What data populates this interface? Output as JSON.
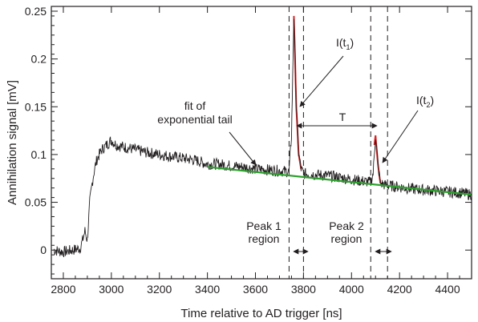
{
  "chart_data": {
    "type": "line",
    "xlabel": "Time relative to AD trigger [ns]",
    "ylabel": "Annihilation signal [mV]",
    "xlim": [
      2750,
      4500
    ],
    "ylim": [
      -0.03,
      0.255
    ],
    "xticks": [
      2800,
      3000,
      3200,
      3400,
      3600,
      3800,
      4000,
      4200,
      4400
    ],
    "yticks": [
      0,
      0.05,
      0.1,
      0.15,
      0.2,
      0.25
    ],
    "ytick_labels": [
      "0",
      "0.05",
      "0.1",
      "0.15",
      "0.2",
      "0.25"
    ],
    "grid": false,
    "series": [
      {
        "color": "#231f20",
        "x": [
          2760,
          2800,
          2840,
          2870,
          2880,
          2890,
          2900,
          2910,
          2920,
          2930,
          2940,
          2960,
          2980,
          3000,
          3020,
          3050,
          3100,
          3150,
          3200,
          3250,
          3300,
          3350,
          3400,
          3450,
          3500,
          3550,
          3600,
          3650,
          3700,
          3740,
          3750,
          3755,
          3760,
          3765,
          3770,
          3780,
          3790,
          3800,
          3850,
          3900,
          3950,
          4000,
          4050,
          4080,
          4090,
          4100,
          4110,
          4120,
          4140,
          4200,
          4250,
          4300,
          4350,
          4400,
          4450,
          4500
        ],
        "y": [
          0.0,
          -0.002,
          0.0,
          0.002,
          0.01,
          0.02,
          0.01,
          0.05,
          0.07,
          0.085,
          0.095,
          0.105,
          0.11,
          0.115,
          0.11,
          0.108,
          0.105,
          0.102,
          0.1,
          0.098,
          0.096,
          0.094,
          0.09,
          0.09,
          0.088,
          0.087,
          0.085,
          0.084,
          0.083,
          0.082,
          0.12,
          0.18,
          0.245,
          0.2,
          0.15,
          0.1,
          0.085,
          0.08,
          0.079,
          0.078,
          0.076,
          0.074,
          0.072,
          0.071,
          0.08,
          0.12,
          0.09,
          0.07,
          0.068,
          0.066,
          0.064,
          0.063,
          0.062,
          0.061,
          0.06,
          0.058
        ]
      },
      {
        "color": "#2ca02c",
        "x": [
          3400,
          4500
        ],
        "y": [
          0.087,
          0.058
        ]
      }
    ],
    "peaks": [
      {
        "x": [
          3760,
          3765,
          3770,
          3780,
          3790
        ],
        "y": [
          0.245,
          0.2,
          0.15,
          0.1,
          0.085
        ],
        "color": "#d62728"
      },
      {
        "x": [
          4095,
          4100,
          4110,
          4120
        ],
        "y": [
          0.11,
          0.12,
          0.09,
          0.07
        ],
        "color": "#d62728"
      }
    ],
    "annotations": {
      "fit_label_1": "fit of",
      "fit_label_2": "exponential tail",
      "i_t1": "I(t",
      "i_t1_sub": "1",
      "i_t2": "I(t",
      "i_t2_sub": "2",
      "close_paren": ")",
      "T": "T",
      "peak1_label_1": "Peak 1",
      "peak1_label_2": "region",
      "peak2_label_1": "Peak 2",
      "peak2_label_2": "region"
    },
    "region_lines_x": [
      3740,
      3800,
      4080,
      4150
    ]
  }
}
